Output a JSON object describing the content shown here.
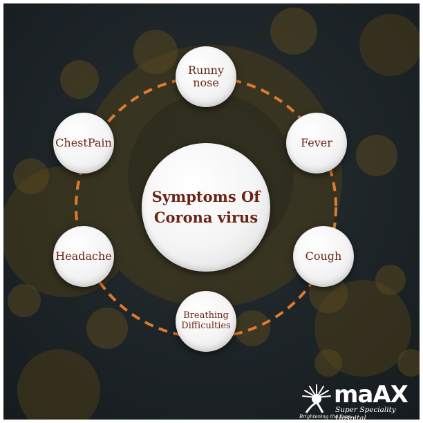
{
  "center": {
    "line1": "Symptoms Of",
    "line2": "Corona virus"
  },
  "symptoms": [
    {
      "line1": "Runny",
      "line2": "nose"
    },
    {
      "label": "Fever"
    },
    {
      "label": "Cough"
    },
    {
      "line1": "Breathing",
      "line2": "Difficulties"
    },
    {
      "label": "Headache"
    },
    {
      "label": "ChestPain"
    }
  ],
  "logo": {
    "name": "maAX",
    "subtitle": "Super Speciality Hospital",
    "tagline": "Brightening the lives..."
  },
  "colors": {
    "ring": "#e07a2e",
    "text": "#6a2414",
    "background": "#1f2629",
    "virus": "#5b4a1e"
  }
}
